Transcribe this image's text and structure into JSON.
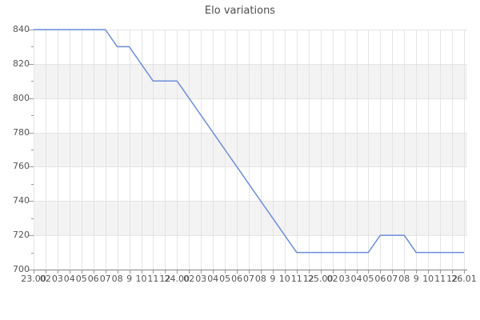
{
  "title": "Elo variations",
  "chart_data": {
    "type": "line",
    "title": "Elo variations",
    "x_tick_labels": [
      "23.00",
      "02",
      "03",
      "04",
      "05",
      "06",
      "07",
      "08",
      "9",
      "10",
      "11",
      "12",
      "24.00",
      "02",
      "03",
      "04",
      "05",
      "06",
      "07",
      "08",
      "9",
      "10",
      "11",
      "12",
      "25.00",
      "02",
      "03",
      "04",
      "05",
      "06",
      "07",
      "08",
      "9",
      "10",
      "11",
      "12",
      "26.01"
    ],
    "y_tick_labels": [
      "700",
      "720",
      "740",
      "760",
      "780",
      "800",
      "820",
      "840"
    ],
    "ylim": [
      700,
      840
    ],
    "y_major_step": 20,
    "y_minor_step": 10,
    "grid": true,
    "legend": "none",
    "xlabel": "",
    "ylabel": "",
    "series": [
      {
        "name": "Elo",
        "color": "#6d8edb",
        "values": [
          840,
          840,
          840,
          840,
          840,
          840,
          840,
          830,
          830,
          820,
          810,
          810,
          810,
          800,
          790,
          780,
          770,
          760,
          750,
          740,
          730,
          720,
          710,
          710,
          710,
          710,
          710,
          710,
          710,
          720,
          720,
          720,
          710,
          710,
          710,
          710,
          710
        ]
      }
    ],
    "colors": {
      "band_alt": "#f3f3f3",
      "band_main": "#ffffff",
      "gridline": "#e4e4e4",
      "axis": "#858585",
      "tick": "#9a9a9a",
      "label": "#555555",
      "title": "#4d4d4d",
      "background": "#ffffff"
    }
  }
}
